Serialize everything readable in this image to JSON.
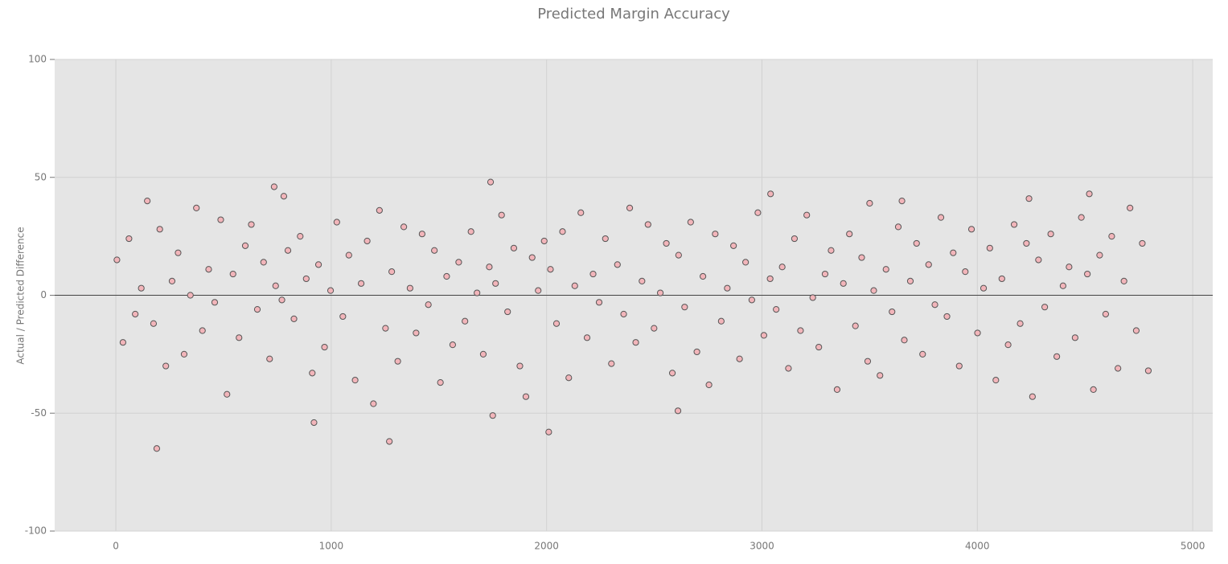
{
  "chart_data": {
    "type": "scatter",
    "title": "Predicted Margin Accuracy",
    "ylabel": "Actual / Predicted Difference",
    "x": [
      5,
      33,
      61,
      90,
      118,
      146,
      175,
      190,
      204,
      232,
      261,
      289,
      317,
      346,
      374,
      402,
      431,
      459,
      487,
      516,
      544,
      572,
      601,
      629,
      657,
      686,
      714,
      735,
      742,
      771,
      780,
      799,
      827,
      856,
      884,
      912,
      920,
      941,
      969,
      997,
      1026,
      1054,
      1082,
      1111,
      1139,
      1167,
      1196,
      1224,
      1252,
      1270,
      1281,
      1309,
      1337,
      1366,
      1394,
      1422,
      1451,
      1479,
      1507,
      1536,
      1564,
      1592,
      1621,
      1649,
      1677,
      1706,
      1734,
      1740,
      1750,
      1763,
      1791,
      1819,
      1848,
      1876,
      1904,
      1933,
      1961,
      1989,
      2010,
      2018,
      2046,
      2074,
      2103,
      2131,
      2159,
      2188,
      2216,
      2244,
      2273,
      2301,
      2329,
      2358,
      2386,
      2414,
      2443,
      2471,
      2499,
      2528,
      2556,
      2584,
      2610,
      2613,
      2641,
      2669,
      2698,
      2726,
      2754,
      2783,
      2811,
      2839,
      2868,
      2896,
      2924,
      2953,
      2981,
      3009,
      3038,
      3040,
      3066,
      3094,
      3123,
      3151,
      3179,
      3208,
      3236,
      3264,
      3293,
      3321,
      3349,
      3378,
      3406,
      3434,
      3463,
      3491,
      3500,
      3519,
      3548,
      3576,
      3604,
      3633,
      3650,
      3661,
      3689,
      3718,
      3746,
      3774,
      3803,
      3831,
      3859,
      3888,
      3916,
      3944,
      3973,
      4001,
      4029,
      4058,
      4086,
      4114,
      4143,
      4171,
      4199,
      4228,
      4240,
      4256,
      4284,
      4313,
      4341,
      4369,
      4398,
      4426,
      4454,
      4483,
      4511,
      4520,
      4539,
      4568,
      4596,
      4624,
      4653,
      4681,
      4709,
      4738,
      4766,
      4794
    ],
    "values": [
      15,
      -20,
      24,
      -8,
      3,
      40,
      -12,
      -65,
      28,
      -30,
      6,
      18,
      -25,
      0,
      37,
      -15,
      11,
      -3,
      32,
      -42,
      9,
      -18,
      21,
      30,
      -6,
      14,
      -27,
      46,
      4,
      -2,
      42,
      19,
      -10,
      25,
      7,
      -33,
      -54,
      13,
      -22,
      2,
      31,
      -9,
      17,
      -36,
      5,
      23,
      -46,
      36,
      -14,
      -62,
      10,
      -28,
      29,
      3,
      -16,
      26,
      -4,
      19,
      -37,
      8,
      -21,
      14,
      -11,
      27,
      1,
      -25,
      12,
      48,
      -51,
      5,
      34,
      -7,
      20,
      -30,
      -43,
      16,
      2,
      23,
      -58,
      11,
      -12,
      27,
      -35,
      4,
      35,
      -18,
      9,
      -3,
      24,
      -29,
      13,
      -8,
      37,
      -20,
      6,
      30,
      -14,
      1,
      22,
      -33,
      -49,
      17,
      -5,
      31,
      -24,
      8,
      -38,
      26,
      -11,
      3,
      21,
      -27,
      14,
      -2,
      35,
      -17,
      7,
      43,
      -6,
      12,
      -31,
      24,
      -15,
      34,
      -1,
      -22,
      9,
      19,
      -40,
      5,
      26,
      -13,
      16,
      -28,
      39,
      2,
      -34,
      11,
      -7,
      29,
      40,
      -19,
      6,
      22,
      -25,
      13,
      -4,
      33,
      -9,
      18,
      -30,
      10,
      28,
      -16,
      3,
      20,
      -36,
      7,
      -21,
      30,
      -12,
      22,
      41,
      -43,
      15,
      -5,
      26,
      -26,
      4,
      12,
      -18,
      33,
      9,
      43,
      -40,
      17,
      -8,
      25,
      -31,
      6,
      37,
      -15,
      22,
      -32
    ],
    "color": "#f2b5ba",
    "edgecolor": "#555555",
    "xlim": [
      -284,
      5093
    ],
    "ylim": [
      -100,
      100
    ],
    "xticks": [
      0,
      1000,
      2000,
      3000,
      4000,
      5000
    ],
    "yticks": [
      -100,
      -50,
      0,
      50,
      100
    ],
    "grid": true,
    "zeroline": true
  }
}
